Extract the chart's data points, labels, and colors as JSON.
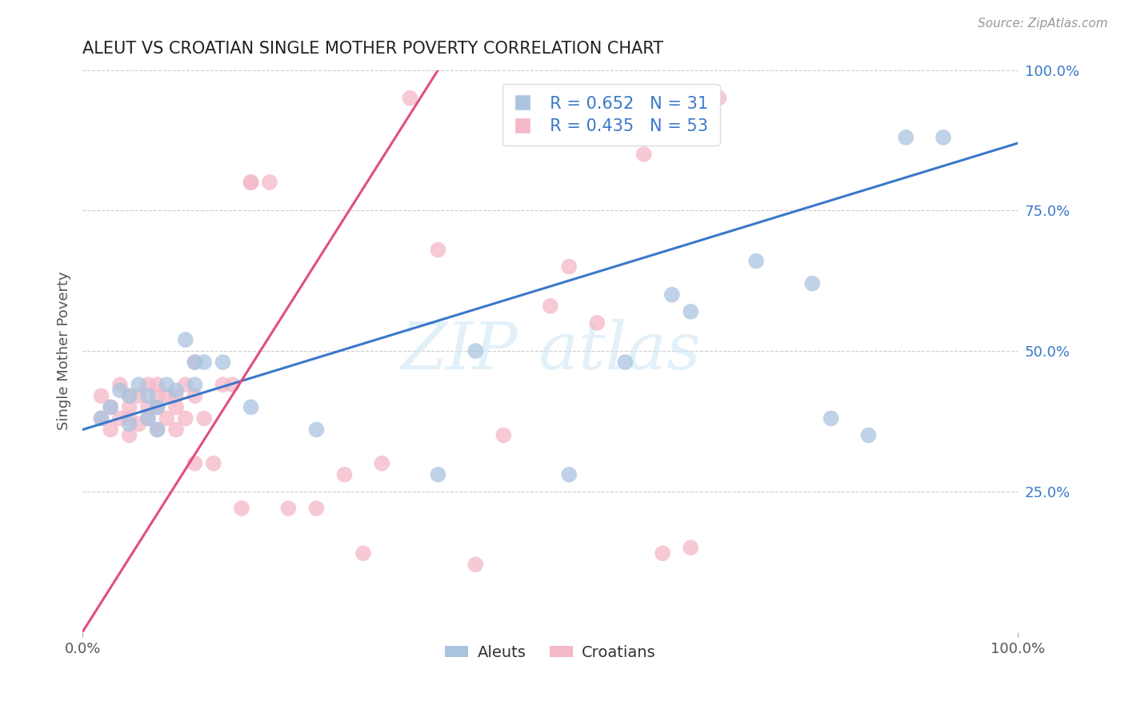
{
  "title": "ALEUT VS CROATIAN SINGLE MOTHER POVERTY CORRELATION CHART",
  "source": "Source: ZipAtlas.com",
  "ylabel": "Single Mother Poverty",
  "xlim": [
    0.0,
    1.0
  ],
  "ylim": [
    0.0,
    1.0
  ],
  "xtick_positions": [
    0.0,
    1.0
  ],
  "xtick_labels": [
    "0.0%",
    "100.0%"
  ],
  "ytick_positions": [
    0.25,
    0.5,
    0.75,
    1.0
  ],
  "ytick_labels": [
    "25.0%",
    "50.0%",
    "75.0%",
    "100.0%"
  ],
  "legend_aleut_R": "R = 0.652",
  "legend_aleut_N": "N = 31",
  "legend_croat_R": "R = 0.435",
  "legend_croat_N": "N = 53",
  "aleut_color": "#aac4e0",
  "croat_color": "#f5b8c8",
  "aleut_line_color": "#3a78c9",
  "croat_line_color": "#e0507a",
  "grid_color": "#cccccc",
  "background_color": "#ffffff",
  "tick_color": "#3a78c9",
  "title_fontsize": 15,
  "source_fontsize": 11,
  "tick_fontsize": 13,
  "ylabel_fontsize": 13,
  "watermark_text": "ZIP atlas",
  "aleut_line_start_y": 0.36,
  "aleut_line_end_y": 0.87,
  "croat_line_start_x": 0.0,
  "croat_line_start_y": 0.0,
  "croat_line_end_x": 0.38,
  "croat_line_end_y": 1.0,
  "aleut_x": [
    0.02,
    0.03,
    0.04,
    0.05,
    0.05,
    0.06,
    0.07,
    0.07,
    0.08,
    0.08,
    0.09,
    0.1,
    0.11,
    0.12,
    0.12,
    0.13,
    0.15,
    0.18,
    0.25,
    0.38,
    0.42,
    0.52,
    0.58,
    0.63,
    0.65,
    0.72,
    0.78,
    0.8,
    0.84,
    0.88,
    0.92
  ],
  "aleut_y": [
    0.38,
    0.4,
    0.43,
    0.42,
    0.37,
    0.44,
    0.38,
    0.42,
    0.4,
    0.36,
    0.44,
    0.43,
    0.52,
    0.48,
    0.44,
    0.48,
    0.48,
    0.4,
    0.36,
    0.28,
    0.5,
    0.28,
    0.48,
    0.6,
    0.57,
    0.66,
    0.62,
    0.38,
    0.35,
    0.88,
    0.88
  ],
  "croat_x": [
    0.02,
    0.02,
    0.03,
    0.03,
    0.04,
    0.04,
    0.05,
    0.05,
    0.05,
    0.05,
    0.06,
    0.06,
    0.07,
    0.07,
    0.07,
    0.08,
    0.08,
    0.08,
    0.08,
    0.09,
    0.09,
    0.1,
    0.1,
    0.1,
    0.11,
    0.11,
    0.12,
    0.12,
    0.12,
    0.13,
    0.14,
    0.15,
    0.16,
    0.17,
    0.18,
    0.18,
    0.2,
    0.22,
    0.25,
    0.28,
    0.3,
    0.32,
    0.35,
    0.38,
    0.42,
    0.45,
    0.5,
    0.52,
    0.55,
    0.6,
    0.62,
    0.65,
    0.68
  ],
  "croat_y": [
    0.38,
    0.42,
    0.4,
    0.36,
    0.38,
    0.44,
    0.35,
    0.42,
    0.38,
    0.4,
    0.42,
    0.37,
    0.38,
    0.44,
    0.4,
    0.36,
    0.4,
    0.42,
    0.44,
    0.38,
    0.42,
    0.36,
    0.42,
    0.4,
    0.38,
    0.44,
    0.3,
    0.42,
    0.48,
    0.38,
    0.3,
    0.44,
    0.44,
    0.22,
    0.8,
    0.8,
    0.8,
    0.22,
    0.22,
    0.28,
    0.14,
    0.3,
    0.95,
    0.68,
    0.12,
    0.35,
    0.58,
    0.65,
    0.55,
    0.85,
    0.14,
    0.15,
    0.95
  ]
}
